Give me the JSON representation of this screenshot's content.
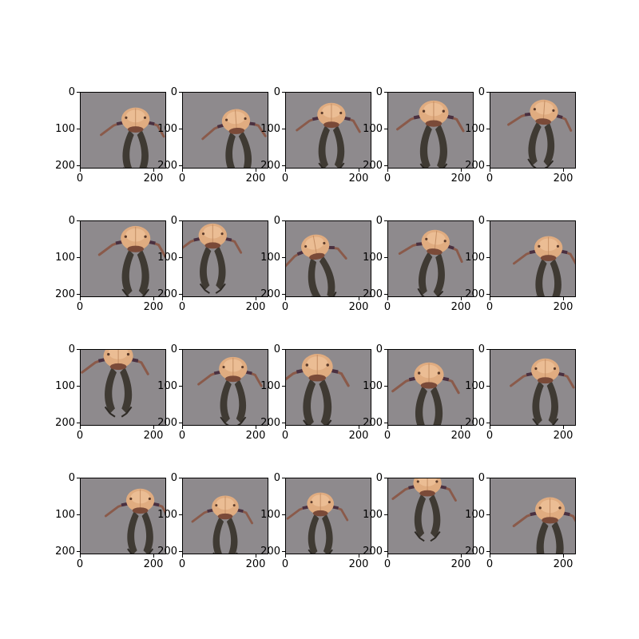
{
  "figure": {
    "rows": 4,
    "cols": 5,
    "background_color": "#ffffff",
    "image_background_color": "#8e8a8d",
    "subject": "ant-head-specimen",
    "y_ticks": [
      "0",
      "100",
      "200"
    ],
    "x_ticks": [
      "0",
      "200"
    ]
  },
  "panels": [
    {
      "variant": 0
    },
    {
      "variant": 1
    },
    {
      "variant": 2
    },
    {
      "variant": 3
    },
    {
      "variant": 4
    },
    {
      "variant": 5
    },
    {
      "variant": 6
    },
    {
      "variant": 7
    },
    {
      "variant": 8
    },
    {
      "variant": 9
    },
    {
      "variant": 10
    },
    {
      "variant": 11
    },
    {
      "variant": 12
    },
    {
      "variant": 13
    },
    {
      "variant": 14
    },
    {
      "variant": 15
    },
    {
      "variant": 16
    },
    {
      "variant": 17
    },
    {
      "variant": 18
    },
    {
      "variant": 19
    }
  ]
}
